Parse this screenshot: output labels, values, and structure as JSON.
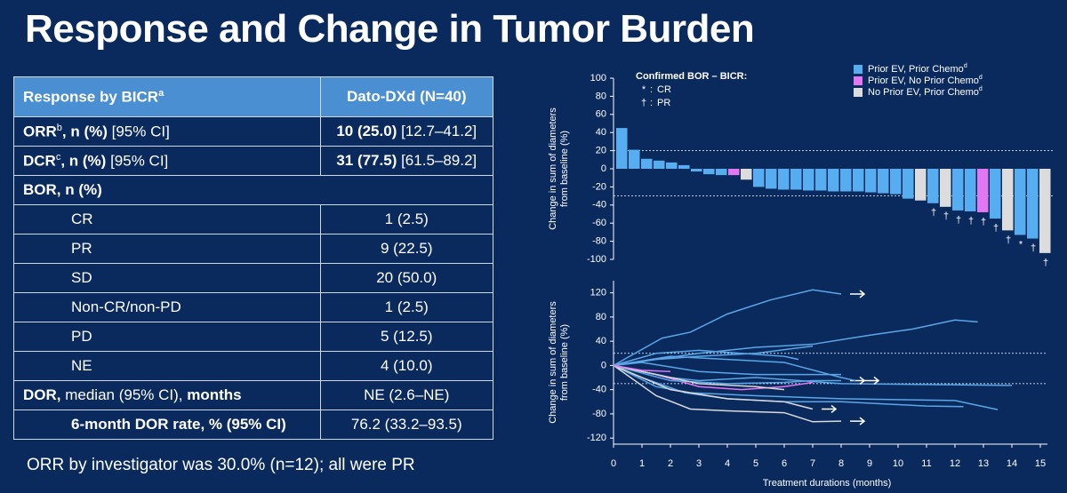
{
  "title": "Response and Change in Tumor Burden",
  "table": {
    "rows": [
      {
        "head": true,
        "cells": [
          [
            {
              "text": "Response by BICR",
              "style": "bold"
            },
            {
              "text": "a",
              "style": "sup"
            }
          ],
          [
            {
              "text": "Dato-DXd (N=40)",
              "style": "bold"
            }
          ]
        ]
      },
      {
        "cells": [
          [
            {
              "text": "ORR",
              "style": "bold"
            },
            {
              "text": "b",
              "style": "sup"
            },
            {
              "text": ", n (%)",
              "style": "bold"
            },
            {
              "text": " [95% CI]",
              "style": "normal"
            }
          ],
          [
            {
              "text": "10 (25.0)",
              "style": "bold"
            },
            {
              "text": " [12.7–41.2]",
              "style": "normal"
            }
          ]
        ]
      },
      {
        "cells": [
          [
            {
              "text": "DCR",
              "style": "bold"
            },
            {
              "text": "c",
              "style": "sup"
            },
            {
              "text": ", n (%)",
              "style": "bold"
            },
            {
              "text": " [95% CI]",
              "style": "normal"
            }
          ],
          [
            {
              "text": "31 (77.5)",
              "style": "bold"
            },
            {
              "text": " [61.5–89.2]",
              "style": "normal"
            }
          ]
        ]
      },
      {
        "cells": [
          [
            {
              "text": "BOR, n (%)",
              "style": "bold"
            }
          ]
        ]
      },
      {
        "indent": true,
        "cells": [
          [
            {
              "text": "CR",
              "style": "normal"
            }
          ],
          [
            {
              "text": "1 (2.5)",
              "style": "normal"
            }
          ]
        ]
      },
      {
        "indent": true,
        "cells": [
          [
            {
              "text": "PR",
              "style": "normal"
            }
          ],
          [
            {
              "text": "9 (22.5)",
              "style": "normal"
            }
          ]
        ]
      },
      {
        "indent": true,
        "cells": [
          [
            {
              "text": "SD",
              "style": "normal"
            }
          ],
          [
            {
              "text": "20 (50.0)",
              "style": "normal"
            }
          ]
        ]
      },
      {
        "indent": true,
        "cells": [
          [
            {
              "text": "Non-CR/non-PD",
              "style": "normal"
            }
          ],
          [
            {
              "text": "1 (2.5)",
              "style": "normal"
            }
          ]
        ]
      },
      {
        "indent": true,
        "cells": [
          [
            {
              "text": "PD",
              "style": "normal"
            }
          ],
          [
            {
              "text": "5 (12.5)",
              "style": "normal"
            }
          ]
        ]
      },
      {
        "indent": true,
        "cells": [
          [
            {
              "text": "NE",
              "style": "normal"
            }
          ],
          [
            {
              "text": "4 (10.0)",
              "style": "normal"
            }
          ]
        ]
      },
      {
        "cells": [
          [
            {
              "text": "DOR,",
              "style": "bold"
            },
            {
              "text": " median ",
              "style": "normal"
            },
            {
              "text": "(95% CI),",
              "style": "normal"
            },
            {
              "text": " months",
              "style": "bold"
            }
          ],
          [
            {
              "text": "NE (2.6–NE)",
              "style": "normal"
            }
          ]
        ]
      },
      {
        "indent": true,
        "cells": [
          [
            {
              "text": "6-month DOR rate, % (95% CI)",
              "style": "bold"
            }
          ],
          [
            {
              "text": "76.2 (33.2–93.5)",
              "style": "normal"
            }
          ]
        ]
      }
    ]
  },
  "footnote": "ORR by investigator was 30.0% (n=12); all were PR",
  "chart_data": [
    {
      "type": "waterfall",
      "ylabel": [
        "Change in sum of diameters",
        "from baseline (%)"
      ],
      "ylim": [
        -100,
        100
      ],
      "yticks": [
        -100,
        -80,
        -60,
        -40,
        -20,
        0,
        20,
        40,
        60,
        80,
        100
      ],
      "ref_lines": [
        20,
        -30
      ],
      "values": [
        45,
        21,
        11,
        9,
        7,
        4,
        -3,
        -6,
        -7,
        -7,
        -12,
        -20,
        -22,
        -23,
        -23,
        -24,
        -24,
        -25,
        -25,
        -25,
        -26,
        -27,
        -28,
        -33,
        -35,
        -38,
        -42,
        -46,
        -47,
        -48,
        -55,
        -68,
        -73,
        -77,
        -93
      ],
      "groups": [
        0,
        0,
        0,
        0,
        0,
        0,
        0,
        0,
        0,
        1,
        2,
        0,
        0,
        0,
        0,
        0,
        0,
        0,
        0,
        0,
        0,
        0,
        0,
        0,
        2,
        0,
        2,
        0,
        0,
        1,
        0,
        2,
        0,
        0,
        2
      ],
      "markers": [
        null,
        null,
        null,
        null,
        null,
        null,
        null,
        null,
        null,
        null,
        null,
        null,
        null,
        null,
        null,
        null,
        null,
        null,
        null,
        null,
        null,
        null,
        null,
        null,
        null,
        "†",
        "†",
        "†",
        "†",
        "†",
        "†",
        "†",
        "*",
        "†",
        "†"
      ],
      "legend": [
        {
          "name": "Prior EV, Prior Chemo",
          "sup": "d",
          "color": "#56aef0"
        },
        {
          "name": "Prior EV, No Prior Chemo",
          "sup": "d",
          "color": "#e277f2"
        },
        {
          "name": "No Prior EV, Prior Chemo",
          "sup": "d",
          "color": "#dcdcdc"
        }
      ],
      "note": {
        "title": "Confirmed BOR – BICR:",
        "items": [
          {
            "symbol": "*",
            "label": "CR"
          },
          {
            "symbol": "†",
            "label": "PR"
          }
        ]
      }
    },
    {
      "type": "line",
      "ylabel": [
        "Change in sum of diameters",
        "from baseline (%)"
      ],
      "xlabel": "Treatment durations (months)",
      "xlim": [
        0,
        15
      ],
      "xticks": [
        0,
        1,
        2,
        3,
        4,
        5,
        6,
        7,
        8,
        9,
        10,
        11,
        12,
        13,
        14,
        15
      ],
      "ylim": [
        -130,
        140
      ],
      "yticks": [
        -120,
        -80,
        -40,
        0,
        40,
        80,
        120
      ],
      "ref_lines": [
        20,
        -30
      ],
      "series": [
        {
          "color": "#5aa6e6",
          "ongoing": true,
          "x": [
            0,
            1.7,
            2.7,
            4,
            5.5,
            7,
            8
          ],
          "values": [
            0,
            45,
            55,
            85,
            108,
            125,
            118
          ]
        },
        {
          "color": "#5aa6e6",
          "x": [
            0,
            3,
            5,
            7,
            9,
            10.5,
            12,
            12.8
          ],
          "values": [
            0,
            20,
            30,
            35,
            50,
            60,
            75,
            72
          ]
        },
        {
          "color": "#5aa6e6",
          "x": [
            0,
            1.5,
            3,
            5,
            7
          ],
          "values": [
            0,
            10,
            15,
            20,
            32
          ]
        },
        {
          "color": "#5aa6e6",
          "x": [
            0,
            1,
            2,
            3,
            5,
            8,
            14
          ],
          "values": [
            0,
            -10,
            -20,
            -25,
            -20,
            -30,
            -33
          ]
        },
        {
          "color": "#5aa6e6",
          "x": [
            0,
            1.5,
            2.7,
            5,
            8,
            12,
            13.5
          ],
          "values": [
            0,
            -35,
            -45,
            -50,
            -55,
            -58,
            -73
          ]
        },
        {
          "color": "#5aa6e6",
          "x": [
            0,
            1,
            2.5,
            4,
            6,
            8,
            11,
            12.3
          ],
          "values": [
            0,
            -20,
            -45,
            -55,
            -60,
            -60,
            -67,
            -68
          ]
        },
        {
          "color": "#d9d9d9",
          "ongoing": true,
          "x": [
            0,
            1.5,
            2.7,
            4,
            6,
            7,
            8
          ],
          "values": [
            0,
            -50,
            -72,
            -75,
            -78,
            -93,
            -92
          ]
        },
        {
          "color": "#d9d9d9",
          "ongoing": true,
          "x": [
            0,
            2,
            4,
            6,
            7
          ],
          "values": [
            0,
            -40,
            -55,
            -60,
            -72
          ]
        },
        {
          "color": "#e277f2",
          "x": [
            0,
            1.5,
            3,
            4.5,
            6,
            7
          ],
          "values": [
            0,
            -15,
            -35,
            -40,
            -35,
            -28
          ]
        },
        {
          "color": "#5aa6e6",
          "ongoing": true,
          "x": [
            0,
            2,
            4,
            6,
            7,
            8
          ],
          "values": [
            0,
            -25,
            -30,
            -28,
            -25,
            -25
          ]
        },
        {
          "color": "#5aa6e6",
          "ongoing": true,
          "x": [
            0,
            2,
            4,
            6,
            8,
            8.5
          ],
          "values": [
            0,
            15,
            10,
            5,
            -20,
            -25
          ]
        },
        {
          "color": "#5aa6e6",
          "x": [
            0,
            1,
            3,
            5,
            8
          ],
          "values": [
            0,
            5,
            -10,
            -15,
            -15
          ]
        },
        {
          "color": "#d9d9d9",
          "x": [
            0,
            2,
            3,
            5,
            6
          ],
          "values": [
            0,
            -20,
            -30,
            -35,
            -40
          ]
        },
        {
          "color": "#5aa6e6",
          "x": [
            0,
            1.5,
            3,
            6,
            6.5
          ],
          "values": [
            0,
            20,
            25,
            15,
            10
          ]
        },
        {
          "color": "#e277f2",
          "x": [
            0,
            1,
            2
          ],
          "values": [
            0,
            -8,
            -10
          ]
        }
      ]
    }
  ]
}
